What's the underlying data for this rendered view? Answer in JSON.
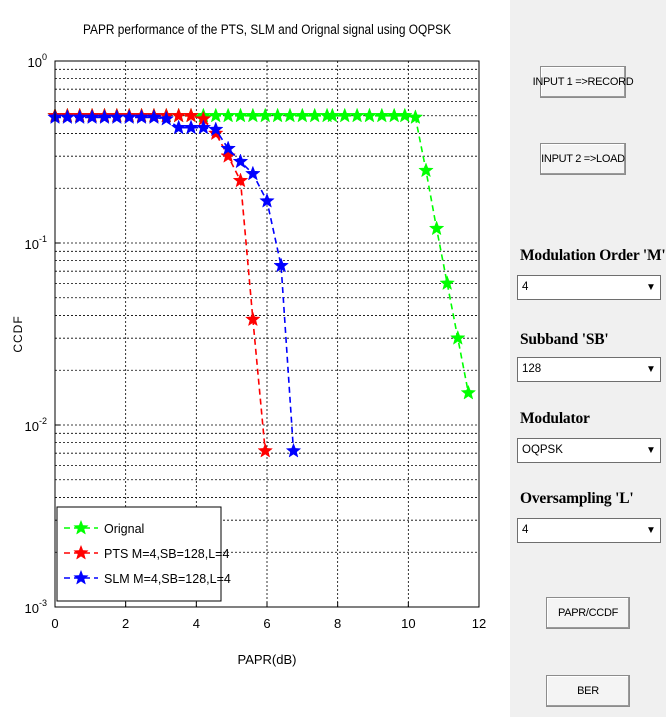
{
  "chart_data": {
    "type": "line",
    "title": "PAPR performance of the PTS, SLM and Orignal signal using OQPSK",
    "xlabel": "PAPR(dB)",
    "ylabel": "CCDF",
    "xlim": [
      0,
      12
    ],
    "ylim": [
      0.001,
      1
    ],
    "yscale": "log",
    "grid": "on",
    "legend_position": "bottom-left",
    "x_ticks": [
      "0",
      "2",
      "4",
      "6",
      "8",
      "10",
      "12"
    ],
    "y_ticks": [
      {
        "base": "10",
        "exp": "0"
      },
      {
        "base": "10",
        "exp": "-1"
      },
      {
        "base": "10",
        "exp": "-2"
      },
      {
        "base": "10",
        "exp": "-3"
      }
    ],
    "series": [
      {
        "name": "Orignal",
        "color": "#00ff00",
        "x": [
          0,
          0.35,
          0.7,
          1.05,
          1.4,
          1.75,
          2.1,
          2.45,
          2.8,
          3.15,
          3.5,
          3.85,
          4.2,
          4.55,
          4.9,
          5.25,
          5.6,
          5.95,
          6.3,
          6.65,
          7.0,
          7.35,
          7.7,
          7.85,
          8.2,
          8.55,
          8.9,
          9.25,
          9.6,
          9.9,
          10.2,
          10.5,
          10.8,
          11.1,
          11.4,
          11.7
        ],
        "y": [
          0.5,
          0.5,
          0.5,
          0.5,
          0.5,
          0.5,
          0.5,
          0.5,
          0.5,
          0.5,
          0.5,
          0.5,
          0.5,
          0.5,
          0.5,
          0.5,
          0.5,
          0.5,
          0.5,
          0.5,
          0.5,
          0.5,
          0.5,
          0.5,
          0.5,
          0.5,
          0.5,
          0.5,
          0.5,
          0.5,
          0.49,
          0.25,
          0.12,
          0.06,
          0.03,
          0.015
        ]
      },
      {
        "name": "PTS M=4,SB=128,L=4",
        "color": "#ff0000",
        "x": [
          0,
          0.35,
          0.7,
          1.05,
          1.4,
          1.75,
          2.1,
          2.45,
          2.8,
          3.15,
          3.5,
          3.85,
          4.2,
          4.55,
          4.9,
          5.25,
          5.6,
          5.95
        ],
        "y": [
          0.5,
          0.5,
          0.5,
          0.5,
          0.5,
          0.5,
          0.5,
          0.5,
          0.5,
          0.5,
          0.5,
          0.5,
          0.48,
          0.4,
          0.3,
          0.22,
          0.038,
          0.0072
        ]
      },
      {
        "name": "SLM M=4,SB=128,L=4",
        "color": "#0000ff",
        "x": [
          0,
          0.35,
          0.7,
          1.05,
          1.4,
          1.75,
          2.1,
          2.45,
          2.8,
          3.15,
          3.5,
          3.85,
          4.2,
          4.55,
          4.9,
          5.25,
          5.6,
          6.0,
          6.4,
          6.75
        ],
        "y": [
          0.49,
          0.49,
          0.49,
          0.49,
          0.49,
          0.49,
          0.49,
          0.49,
          0.49,
          0.48,
          0.43,
          0.43,
          0.43,
          0.42,
          0.33,
          0.28,
          0.24,
          0.17,
          0.075,
          0.0072
        ]
      }
    ]
  },
  "controls": {
    "input1_label": "INPUT 1 =>RECORD",
    "input2_label": "INPUT 2  =>LOAD",
    "modulation_order_label": "Modulation Order 'M'",
    "modulation_order_value": "4",
    "subband_label": "Subband 'SB'",
    "subband_value": "128",
    "modulator_label": "Modulator",
    "modulator_value": "OQPSK",
    "oversampling_label": "Oversampling 'L'",
    "oversampling_value": "4",
    "papr_button_label": "PAPR/CCDF",
    "ber_button_label": "BER"
  },
  "icons": {
    "dropdown_arrow": "▼"
  }
}
